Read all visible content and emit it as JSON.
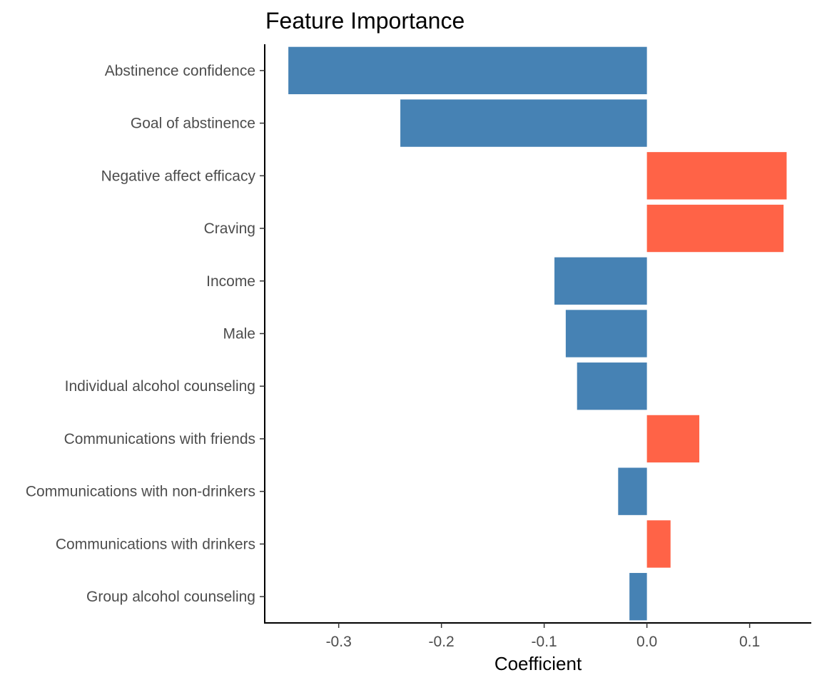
{
  "chart_data": {
    "type": "bar",
    "orientation": "horizontal",
    "title": "Feature Importance",
    "xlabel": "Coefficient",
    "ylabel": "",
    "xlim": [
      -0.372,
      0.16
    ],
    "xticks": [
      -0.3,
      -0.2,
      -0.1,
      0.0,
      0.1
    ],
    "xtick_labels": [
      "-0.3",
      "-0.2",
      "-0.1",
      "0.0",
      "0.1"
    ],
    "grid": false,
    "legend": "none",
    "colors": {
      "negative": "#4682B4",
      "positive": "#FF6347"
    },
    "categories": [
      "Abstinence confidence",
      "Goal of abstinence",
      "Negative affect efficacy",
      "Craving",
      "Income",
      "Male",
      "Individual alcohol counseling",
      "Communications with friends",
      "Communications with non-drinkers",
      "Communications with drinkers",
      "Group alcohol counseling"
    ],
    "values": [
      -0.349,
      -0.24,
      0.136,
      0.133,
      -0.09,
      -0.079,
      -0.068,
      0.051,
      -0.028,
      0.023,
      -0.017
    ]
  }
}
